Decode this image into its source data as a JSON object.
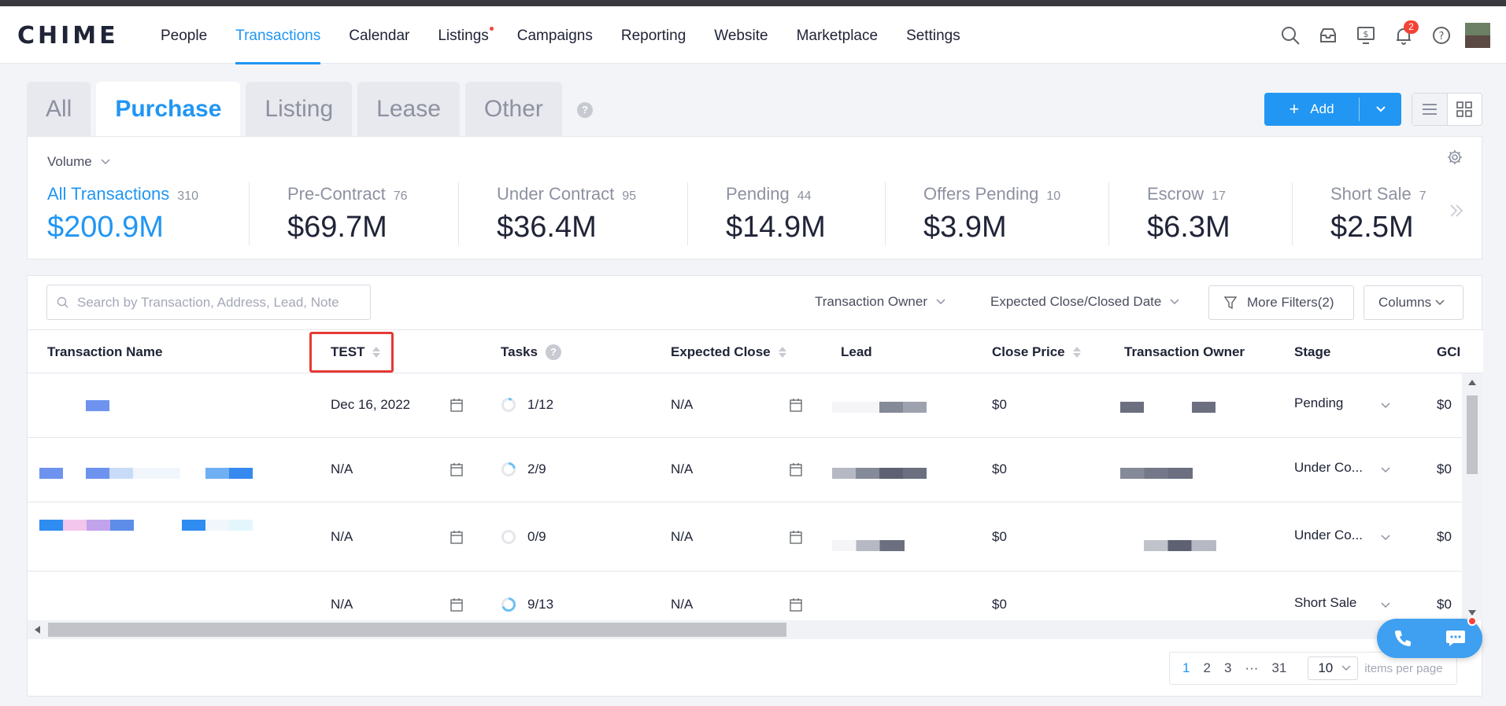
{
  "brand": {
    "logo": "CHIME"
  },
  "nav": {
    "items": [
      {
        "label": "People"
      },
      {
        "label": "Transactions"
      },
      {
        "label": "Calendar"
      },
      {
        "label": "Listings"
      },
      {
        "label": "Campaigns"
      },
      {
        "label": "Reporting"
      },
      {
        "label": "Website"
      },
      {
        "label": "Marketplace"
      },
      {
        "label": "Settings"
      }
    ],
    "active": "Transactions",
    "notification_count": "2"
  },
  "tabs": {
    "items": [
      {
        "label": "All"
      },
      {
        "label": "Purchase"
      },
      {
        "label": "Listing"
      },
      {
        "label": "Lease"
      },
      {
        "label": "Other"
      }
    ],
    "active": "Purchase",
    "help": "?"
  },
  "toolbar": {
    "add_label": "Add"
  },
  "stats": {
    "volume_label": "Volume",
    "items": [
      {
        "label": "All Transactions",
        "count": "310",
        "amount": "$200.9M"
      },
      {
        "label": "Pre-Contract",
        "count": "76",
        "amount": "$69.7M"
      },
      {
        "label": "Under Contract",
        "count": "95",
        "amount": "$36.4M"
      },
      {
        "label": "Pending",
        "count": "44",
        "amount": "$14.9M"
      },
      {
        "label": "Offers Pending",
        "count": "10",
        "amount": "$3.9M"
      },
      {
        "label": "Escrow",
        "count": "17",
        "amount": "$6.3M"
      },
      {
        "label": "Short Sale",
        "count": "7",
        "amount": "$2.5M"
      }
    ]
  },
  "filters": {
    "search_placeholder": "Search by Transaction, Address, Lead, Note",
    "owner": "Transaction Owner",
    "close_date": "Expected Close/Closed Date",
    "more": "More Filters(2)",
    "columns": "Columns"
  },
  "table": {
    "headers": {
      "name": "Transaction Name",
      "test": "TEST",
      "tasks": "Tasks",
      "expected_close": "Expected Close",
      "lead": "Lead",
      "close_price": "Close Price",
      "owner": "Transaction Owner",
      "stage": "Stage",
      "gci": "GCI"
    },
    "help": "?",
    "rows": [
      {
        "test": "Dec 16, 2022",
        "tasks": "1/12",
        "progress": 0.083,
        "expected_close": "N/A",
        "close_price": "$0",
        "stage": "Pending",
        "gci": "$0"
      },
      {
        "test": "N/A",
        "tasks": "2/9",
        "progress": 0.222,
        "expected_close": "N/A",
        "close_price": "$0",
        "stage": "Under Co...",
        "gci": "$0"
      },
      {
        "test": "N/A",
        "tasks": "0/9",
        "progress": 0,
        "expected_close": "N/A",
        "close_price": "$0",
        "stage": "Under Co...",
        "gci": "$0"
      },
      {
        "test": "N/A",
        "tasks": "9/13",
        "progress": 0.692,
        "expected_close": "N/A",
        "close_price": "$0",
        "stage": "Short Sale",
        "gci": "$0"
      }
    ]
  },
  "pagination": {
    "pages": [
      "1",
      "2",
      "3",
      "···",
      "31"
    ],
    "active": "1",
    "per_page": "10",
    "per_page_label": "items per page"
  },
  "icons": {
    "nav": [
      "search-icon",
      "inbox-icon",
      "dollar-monitor-icon",
      "bell-icon",
      "help-icon"
    ],
    "cal": "calendar-icon",
    "phone": "phone-icon",
    "chat": "chat-icon"
  },
  "colors": {
    "accent": "#2196f3",
    "alert": "#f44336",
    "highlight": "#e53935"
  }
}
